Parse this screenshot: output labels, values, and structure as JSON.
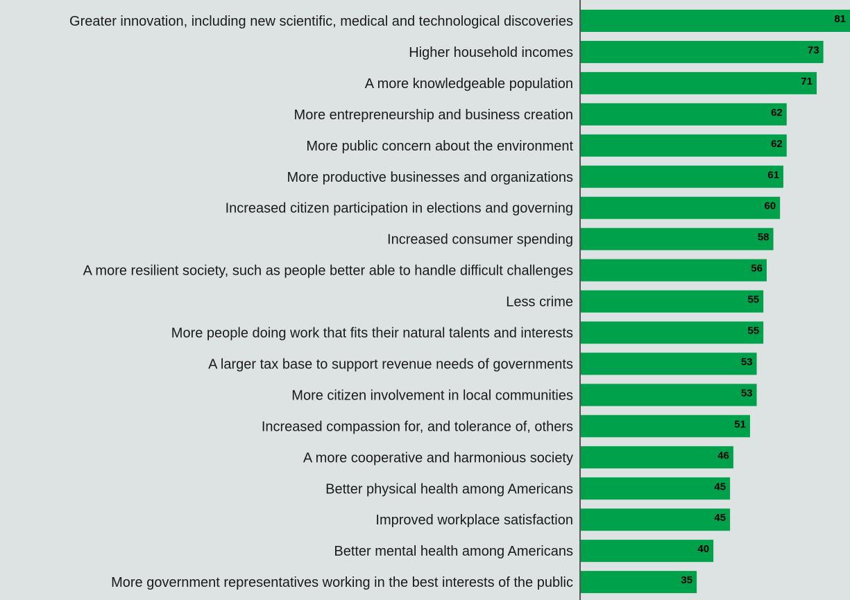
{
  "chart_data": {
    "type": "bar",
    "orientation": "horizontal",
    "title": "",
    "xlabel": "",
    "ylabel": "",
    "xlim": [
      0,
      81
    ],
    "grid": false,
    "legend": "none",
    "bar_color": "#00a14b",
    "axis_color": "#555555",
    "categories": [
      "Greater innovation, including new scientific, medical and technological discoveries",
      "Higher household incomes",
      "A more knowledgeable population",
      "More entrepreneurship and business creation",
      "More public concern about the environment",
      "More productive businesses and organizations",
      "Increased citizen participation in elections and governing",
      "Increased consumer spending",
      "A more resilient society, such as people better able to handle difficult challenges",
      "Less crime",
      "More people doing work that fits their natural talents and interests",
      "A larger tax base to support revenue needs of governments",
      "More citizen involvement in local communities",
      "Increased compassion for, and tolerance of, others",
      "A more cooperative and harmonious society",
      "Better physical health among Americans",
      "Improved workplace satisfaction",
      "Better mental health among Americans",
      "More government representatives working in the best interests of the public"
    ],
    "values": [
      81,
      73,
      71,
      62,
      62,
      61,
      60,
      58,
      56,
      55,
      55,
      53,
      53,
      51,
      46,
      45,
      45,
      40,
      35
    ]
  }
}
